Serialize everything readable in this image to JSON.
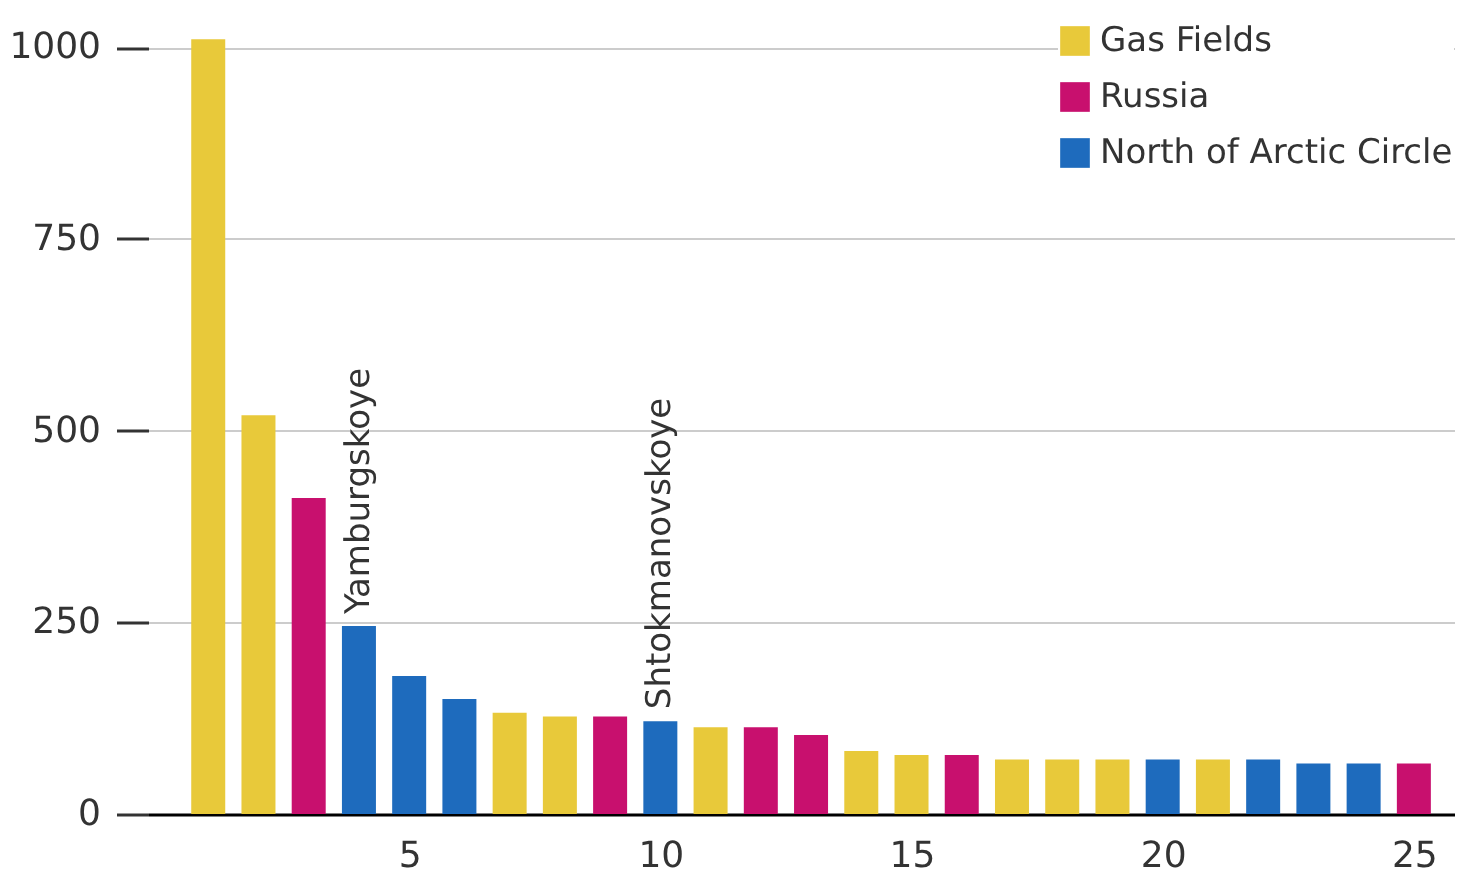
{
  "chart_data": {
    "type": "bar",
    "x": [
      1,
      2,
      3,
      4,
      5,
      6,
      7,
      8,
      9,
      10,
      11,
      12,
      13,
      14,
      15,
      16,
      17,
      18,
      19,
      20,
      21,
      22,
      23,
      24,
      25
    ],
    "series": [
      {
        "name": "Gas Fields",
        "color": "#e8c93a",
        "values": [
          1010,
          520,
          null,
          null,
          null,
          null,
          132,
          127,
          null,
          null,
          113,
          null,
          null,
          82,
          77,
          null,
          71,
          71,
          71,
          null,
          71,
          null,
          null,
          null,
          null
        ]
      },
      {
        "name": "Russia",
        "color": "#c8106e",
        "values": [
          null,
          null,
          412,
          null,
          null,
          null,
          null,
          null,
          127,
          null,
          null,
          113,
          103,
          null,
          null,
          77,
          null,
          null,
          null,
          null,
          null,
          null,
          null,
          null,
          66
        ]
      },
      {
        "name": "North of Arctic Circle",
        "color": "#1e6bbd",
        "values": [
          null,
          null,
          null,
          245,
          180,
          150,
          null,
          null,
          null,
          121,
          null,
          null,
          null,
          null,
          null,
          null,
          null,
          null,
          null,
          71,
          null,
          71,
          66,
          66,
          null
        ]
      }
    ],
    "xlim": [
      0,
      25.6
    ],
    "xticks": [
      5,
      10,
      15,
      20,
      25
    ],
    "ylim": [
      0,
      1030
    ],
    "yticks": [
      0,
      250,
      500,
      750,
      1000
    ],
    "grid": "y",
    "legend": "top right",
    "annotations": [
      {
        "text": "Yamburgskoye",
        "x": 4,
        "y": 245
      },
      {
        "text": "Shtokmanovskoye",
        "x": 10,
        "y": 121
      }
    ]
  }
}
